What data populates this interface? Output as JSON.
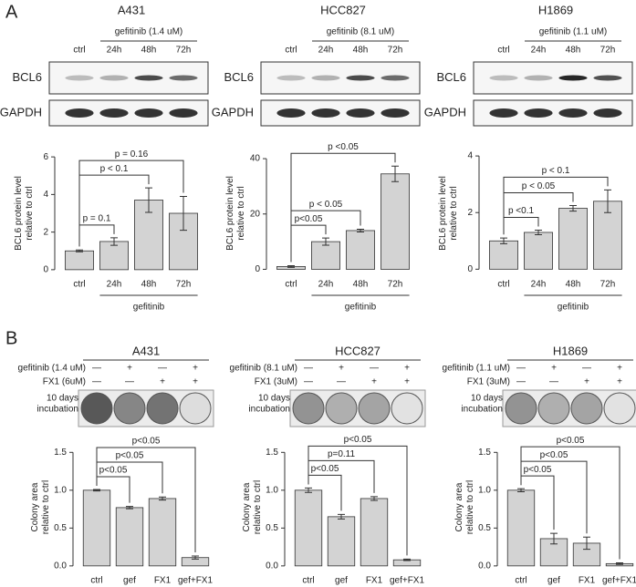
{
  "panel_labels": [
    "A",
    "B"
  ],
  "chart_data": [
    {
      "type": "bar",
      "title": "A431",
      "treatment": "gefitinib (1.4 uM)",
      "blot_lanes": [
        "ctrl",
        "24h",
        "48h",
        "72h"
      ],
      "blot_rows": [
        "BCL6",
        "GAPDH"
      ],
      "ylabel": [
        "BCL6 protein level",
        "relative to ctrl"
      ],
      "categories": [
        "ctrl",
        "24h",
        "48h",
        "72h"
      ],
      "xgroup": "gefitinib",
      "values": [
        1.0,
        1.5,
        3.7,
        3.0
      ],
      "errors": [
        0.05,
        0.2,
        0.65,
        0.9
      ],
      "color": "#d3d3d3",
      "ylim": [
        -0.2,
        6.2
      ],
      "yticks": [
        0,
        2,
        4,
        6
      ],
      "annotations": [
        {
          "label": "p = 0.1",
          "from": 0,
          "to": 1
        },
        {
          "label": "p < 0.1",
          "from": 0,
          "to": 2
        },
        {
          "label": "p = 0.16",
          "from": 0,
          "to": 3
        }
      ]
    },
    {
      "type": "bar",
      "title": "HCC827",
      "treatment": "gefitinib (8.1 uM)",
      "blot_lanes": [
        "ctrl",
        "24h",
        "48h",
        "72h"
      ],
      "blot_rows": [
        "BCL6",
        "GAPDH"
      ],
      "ylabel": [
        "BCL6 protein level",
        "relative to ctrl"
      ],
      "categories": [
        "ctrl",
        "24h",
        "48h",
        "72h"
      ],
      "xgroup": "gefitinib",
      "values": [
        1.0,
        10.0,
        14.0,
        34.5
      ],
      "errors": [
        0.3,
        1.3,
        0.5,
        2.8
      ],
      "color": "#d3d3d3",
      "ylim": [
        -1.5,
        42
      ],
      "yticks": [
        0,
        20,
        40
      ],
      "annotations": [
        {
          "label": "p<0.05",
          "from": 0,
          "to": 1
        },
        {
          "label": "p < 0.05",
          "from": 0,
          "to": 2
        },
        {
          "label": "p <0.05",
          "from": 0,
          "to": 3
        }
      ]
    },
    {
      "type": "bar",
      "title": "H1869",
      "treatment": "gefitinib (1.1 uM)",
      "blot_lanes": [
        "ctrl",
        "24h",
        "48h",
        "72h"
      ],
      "blot_rows": [
        "BCL6",
        "GAPDH"
      ],
      "ylabel": [
        "BCL6 protein level",
        "relative to ctrl"
      ],
      "categories": [
        "ctrl",
        "24h",
        "48h",
        "72h"
      ],
      "xgroup": "gefitinib",
      "values": [
        1.0,
        1.3,
        2.15,
        2.4
      ],
      "errors": [
        0.1,
        0.08,
        0.1,
        0.4
      ],
      "color": "#d3d3d3",
      "ylim": [
        -0.15,
        4.1
      ],
      "yticks": [
        0,
        2,
        4
      ],
      "annotations": [
        {
          "label": "p <0.1",
          "from": 0,
          "to": 1
        },
        {
          "label": "p < 0.05",
          "from": 0,
          "to": 2
        },
        {
          "label": "p < 0.1",
          "from": 0,
          "to": 3
        }
      ]
    },
    {
      "type": "bar",
      "title": "A431",
      "conditions": [
        {
          "label": "gefitinib (1.4 uM)",
          "marks": [
            "—",
            "+",
            "—",
            "+"
          ]
        },
        {
          "label": "FX1 (6uM)",
          "marks": [
            "—",
            "—",
            "+",
            "+"
          ]
        }
      ],
      "image_label": [
        "10 days",
        "incubation"
      ],
      "ylabel": [
        "Colony area",
        "relative to ctrl"
      ],
      "categories": [
        "ctrl",
        "gef",
        "FX1",
        "gef+FX1"
      ],
      "values": [
        1.0,
        0.77,
        0.89,
        0.11
      ],
      "errors": [
        0.01,
        0.015,
        0.02,
        0.02
      ],
      "color": "#d3d3d3",
      "ylim": [
        -0.05,
        1.6
      ],
      "yticks": [
        {
          "value": 0,
          "label": "0.0"
        },
        {
          "value": 0.5,
          "label": "0.5"
        },
        {
          "value": 1,
          "label": "1.0"
        },
        {
          "value": 1.5,
          "label": "1.5"
        }
      ],
      "annotations": [
        {
          "label": "p<0.05",
          "from": 0,
          "to": 1
        },
        {
          "label": "p<0.05",
          "from": 0,
          "to": 2
        },
        {
          "label": "p<0.05",
          "from": 0,
          "to": 3
        }
      ]
    },
    {
      "type": "bar",
      "title": "HCC827",
      "conditions": [
        {
          "label": "gefitinib (8.1 uM)",
          "marks": [
            "—",
            "+",
            "—",
            "+"
          ]
        },
        {
          "label": "FX1 (3uM)",
          "marks": [
            "—",
            "—",
            "+",
            "+"
          ]
        }
      ],
      "image_label": [
        "10 days",
        "incubation"
      ],
      "ylabel": [
        "Colony area",
        "relative to ctrl"
      ],
      "categories": [
        "ctrl",
        "gef",
        "FX1",
        "gef+FX1"
      ],
      "values": [
        1.0,
        0.65,
        0.89,
        0.08
      ],
      "errors": [
        0.03,
        0.03,
        0.025,
        0.01
      ],
      "color": "#d3d3d3",
      "ylim": [
        -0.05,
        1.6
      ],
      "yticks": [
        {
          "value": 0,
          "label": "0.0"
        },
        {
          "value": 0.5,
          "label": "0.5"
        },
        {
          "value": 1,
          "label": "1.0"
        },
        {
          "value": 1.5,
          "label": "1.5"
        }
      ],
      "annotations": [
        {
          "label": "p<0.05",
          "from": 0,
          "to": 1
        },
        {
          "label": "p=0.11",
          "from": 0,
          "to": 2
        },
        {
          "label": "p<0.05",
          "from": 0,
          "to": 3
        }
      ]
    },
    {
      "type": "bar",
      "title": "H1869",
      "conditions": [
        {
          "label": "gefitinib (1.1 uM)",
          "marks": [
            "—",
            "+",
            "—",
            "+"
          ]
        },
        {
          "label": "FX1 (3uM)",
          "marks": [
            "—",
            "—",
            "+",
            "+"
          ]
        }
      ],
      "image_label": [
        "10 days",
        "incubation"
      ],
      "ylabel": [
        "Colony area",
        "relative to ctrl"
      ],
      "categories": [
        "ctrl",
        "gef",
        "FX1",
        "gef+FX1"
      ],
      "values": [
        1.0,
        0.36,
        0.3,
        0.03
      ],
      "errors": [
        0.02,
        0.07,
        0.08,
        0.01
      ],
      "color": "#d3d3d3",
      "ylim": [
        -0.05,
        1.6
      ],
      "yticks": [
        {
          "value": 0,
          "label": "0.0"
        },
        {
          "value": 0.5,
          "label": "0.5"
        },
        {
          "value": 1,
          "label": "1.0"
        },
        {
          "value": 1.5,
          "label": "1.5"
        }
      ],
      "annotations": [
        {
          "label": "p<0.05",
          "from": 0,
          "to": 1
        },
        {
          "label": "p<0.05",
          "from": 0,
          "to": 2
        },
        {
          "label": "p<0.05",
          "from": 0,
          "to": 3
        }
      ]
    }
  ]
}
